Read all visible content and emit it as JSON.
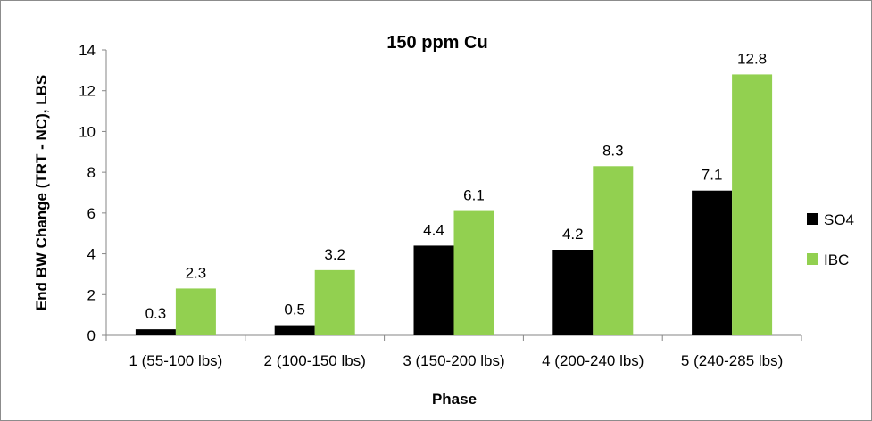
{
  "chart_data": {
    "type": "bar",
    "title": "150 ppm Cu",
    "xlabel": "Phase",
    "ylabel": "End BW Change (TRT - NC), LBS",
    "categories": [
      "1 (55-100 lbs)",
      "2 (100-150 lbs)",
      "3 (150-200 lbs)",
      "4 (200-240 lbs)",
      "5 (240-285 lbs)"
    ],
    "series": [
      {
        "name": "SO4",
        "values": [
          0.3,
          0.5,
          4.4,
          4.2,
          7.1
        ],
        "labels": [
          "0.3",
          "0.5",
          "4.4",
          "4.2",
          "7.1"
        ],
        "color": "#000000"
      },
      {
        "name": "IBC",
        "values": [
          2.3,
          3.2,
          6.1,
          8.3,
          12.8
        ],
        "labels": [
          "2.3",
          "3.2",
          "6.1",
          "8.3",
          "12.8"
        ],
        "color": "#92d050"
      }
    ],
    "ylim": [
      0,
      14
    ],
    "yticks": [
      0,
      2,
      4,
      6,
      8,
      10,
      12,
      14
    ],
    "grid": false,
    "legend_position": "right"
  }
}
